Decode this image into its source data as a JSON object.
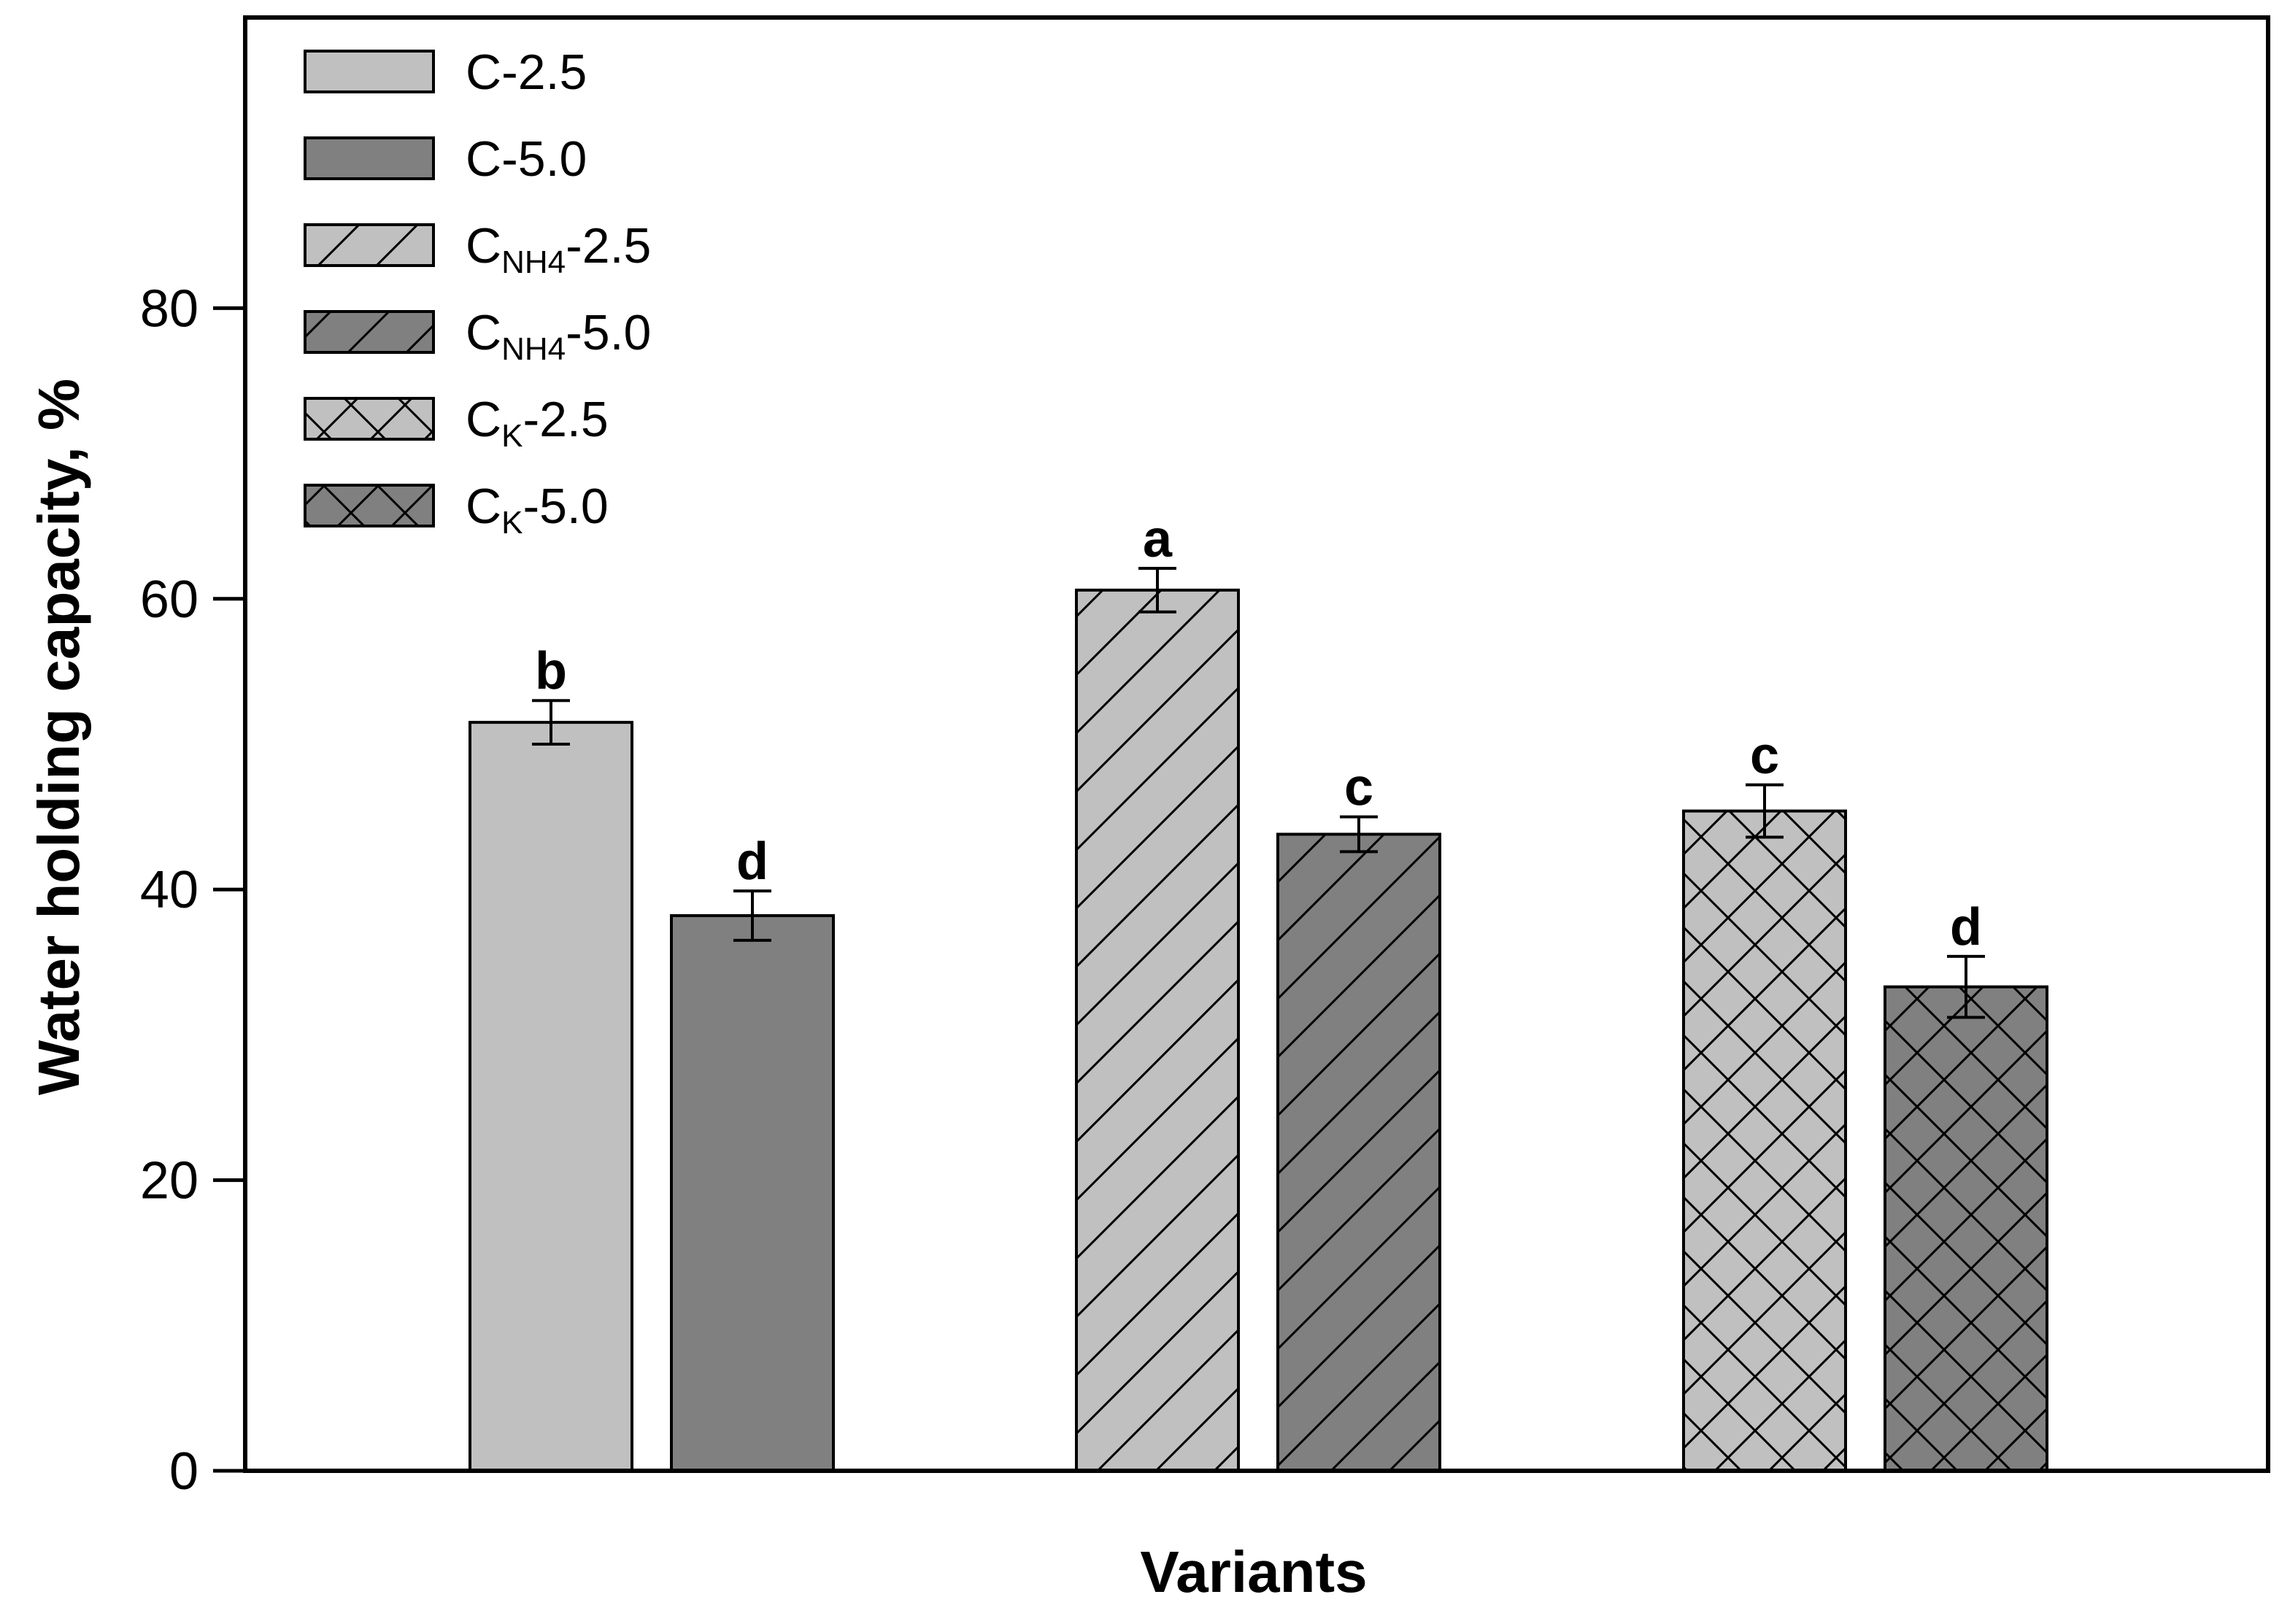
{
  "chart_data": {
    "type": "bar",
    "xlabel": "Variants",
    "ylabel": "Water holding capacity, %",
    "ylim": [
      0,
      100
    ],
    "yticks": [
      0,
      20,
      40,
      60,
      80
    ],
    "grid": false,
    "legend_position": "top-left",
    "colors": {
      "light": "#c0c0c0",
      "dark": "#808080",
      "stroke": "#000000"
    },
    "series": [
      {
        "name": "C-2.5",
        "main": "C",
        "sub": "",
        "suffix": "-2.5",
        "pattern": "solid",
        "shade": "light",
        "group": 0,
        "value": 51.5,
        "error": 1.5,
        "letter": "b"
      },
      {
        "name": "C-5.0",
        "main": "C",
        "sub": "",
        "suffix": "-5.0",
        "pattern": "solid",
        "shade": "dark",
        "group": 0,
        "value": 38.2,
        "error": 1.7,
        "letter": "d"
      },
      {
        "name": "CNH4-2.5",
        "main": "C",
        "sub": "NH4",
        "suffix": "-2.5",
        "pattern": "diagonal",
        "shade": "light",
        "group": 1,
        "value": 60.6,
        "error": 1.5,
        "letter": "a"
      },
      {
        "name": "CNH4-5.0",
        "main": "C",
        "sub": "NH4",
        "suffix": "-5.0",
        "pattern": "diagonal",
        "shade": "dark",
        "group": 1,
        "value": 43.8,
        "error": 1.2,
        "letter": "c"
      },
      {
        "name": "CK-2.5",
        "main": "C",
        "sub": "K",
        "suffix": "-2.5",
        "pattern": "crosshatch",
        "shade": "light",
        "group": 2,
        "value": 45.4,
        "error": 1.8,
        "letter": "c"
      },
      {
        "name": "CK-5.0",
        "main": "C",
        "sub": "K",
        "suffix": "-5.0",
        "pattern": "crosshatch",
        "shade": "dark",
        "group": 2,
        "value": 33.3,
        "error": 2.1,
        "letter": "d"
      }
    ]
  }
}
